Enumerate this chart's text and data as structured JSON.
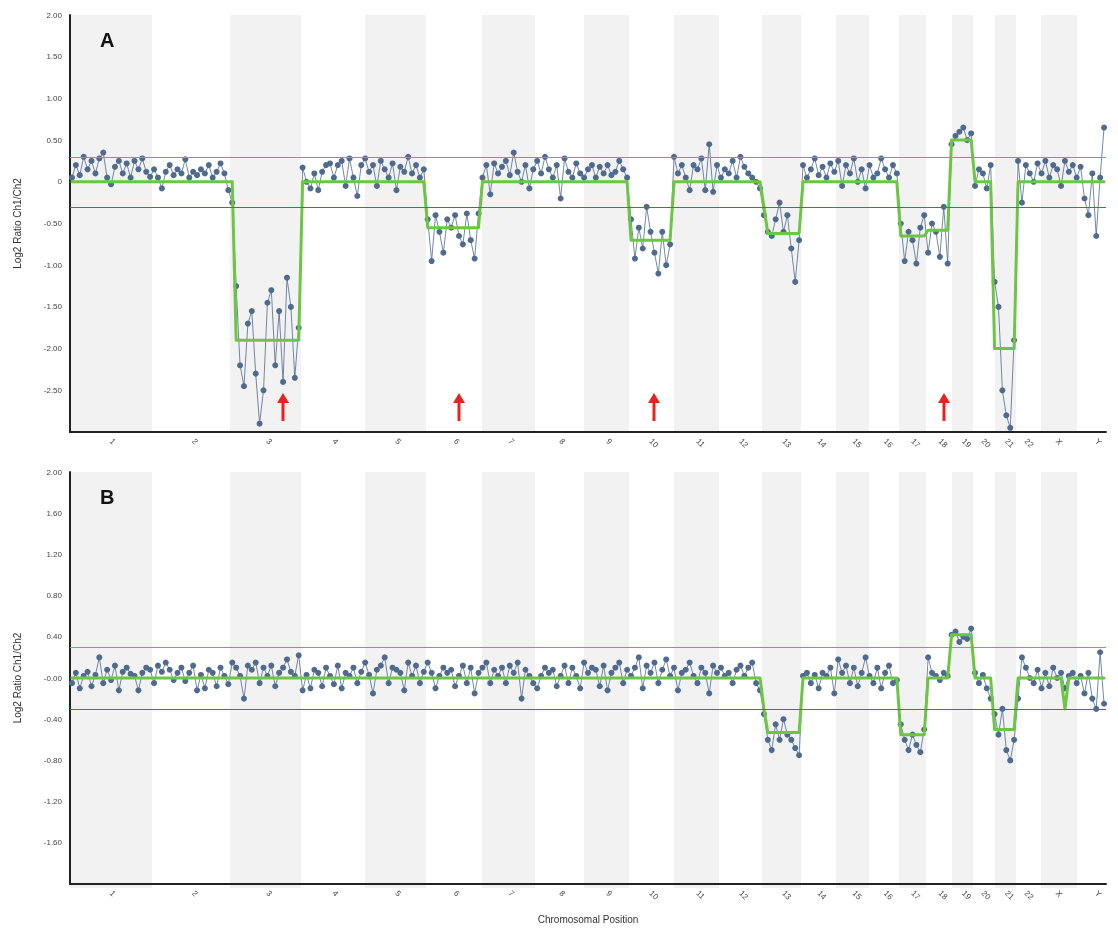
{
  "chart_data": [
    {
      "type": "line",
      "title": "A",
      "ylabel": "Log2 Ratio Ch1/Ch2",
      "ylim": [
        -3,
        2
      ],
      "categories": [
        null,
        null,
        null,
        null,
        null,
        null,
        null,
        null,
        null,
        null,
        "1",
        null,
        null,
        null,
        null,
        null,
        null,
        null,
        null,
        null,
        null,
        null,
        null,
        null,
        null,
        null,
        null,
        null,
        null,
        null,
        null,
        "2",
        null,
        null,
        null,
        null,
        null,
        null,
        null,
        null,
        null,
        null,
        null,
        null,
        null,
        null,
        null,
        null,
        null,
        null,
        "3",
        null,
        null,
        null,
        null,
        null,
        null,
        null,
        null,
        null,
        null,
        null,
        null,
        null,
        null,
        null,
        null,
        "4",
        null,
        null,
        null,
        null,
        null,
        null,
        null,
        null,
        null,
        null,
        null,
        null,
        null,
        null,
        null,
        "5",
        null,
        null,
        null,
        null,
        null,
        null,
        null,
        null,
        null,
        null,
        null,
        null,
        null,
        null,
        "6",
        null,
        null,
        null,
        null,
        null,
        null,
        null,
        null,
        null,
        null,
        null,
        null,
        null,
        "7",
        null,
        null,
        null,
        null,
        null,
        null,
        null,
        null,
        null,
        null,
        null,
        null,
        "8",
        null,
        null,
        null,
        null,
        null,
        null,
        null,
        null,
        null,
        null,
        null,
        "9",
        null,
        null,
        null,
        null,
        null,
        null,
        null,
        null,
        null,
        null,
        "10",
        null,
        null,
        null,
        null,
        null,
        null,
        null,
        null,
        null,
        null,
        null,
        "11",
        null,
        null,
        null,
        null,
        null,
        null,
        null,
        null,
        null,
        null,
        "12",
        null,
        null,
        null,
        null,
        null,
        null,
        null,
        null,
        null,
        null,
        "13",
        null,
        null,
        null,
        null,
        null,
        null,
        null,
        null,
        "14",
        null,
        null,
        null,
        null,
        null,
        null,
        null,
        null,
        "15",
        null,
        null,
        null,
        null,
        null,
        null,
        null,
        "16",
        null,
        null,
        null,
        null,
        null,
        null,
        "17",
        null,
        null,
        null,
        null,
        null,
        null,
        "18",
        null,
        null,
        null,
        null,
        null,
        "19",
        null,
        null,
        null,
        null,
        "20",
        null,
        null,
        null,
        null,
        null,
        "21",
        null,
        null,
        null,
        null,
        "22",
        null,
        null,
        null,
        null,
        null,
        null,
        null,
        "X",
        null,
        null,
        null,
        null,
        null,
        null,
        null,
        null,
        null,
        "Y",
        null,
        null
      ],
      "yticks": [
        {
          "value": 2,
          "label": "2.00"
        },
        {
          "value": 1.5,
          "label": "1.50"
        },
        {
          "value": 1,
          "label": "1.00"
        },
        {
          "value": 0.5,
          "label": "0.50"
        },
        0,
        {
          "value": -0.5,
          "label": "-0.50"
        },
        {
          "value": -1,
          "label": "-1.00"
        },
        {
          "value": -1.5,
          "label": "-1.50"
        },
        {
          "value": -2,
          "label": "-2.00"
        },
        {
          "value": -2.5,
          "label": "-2.50"
        }
      ],
      "ref_lines": [
        {
          "axis": "y",
          "value": 0.3,
          "color": "#66b84a"
        },
        {
          "axis": "y",
          "value": -0.3,
          "color": "#b04848"
        }
      ],
      "series": [
        {
          "marker": "circle",
          "color": "#4f6a8f",
          "values": [
            0.05,
            0.2,
            0.08,
            0.3,
            0.15,
            0.25,
            0.1,
            0.28,
            0.35,
            0.05,
            -0.03,
            0.18,
            0.25,
            0.1,
            0.22,
            0.05,
            0.25,
            0.15,
            0.28,
            0.12,
            0.06,
            0.15,
            0.05,
            -0.08,
            0.12,
            0.2,
            0.08,
            0.15,
            0.1,
            0.27,
            0.05,
            0.12,
            0.08,
            0.15,
            0.1,
            0.2,
            0.05,
            0.12,
            0.22,
            0.1,
            -0.1,
            -0.25,
            -1.25,
            -2.2,
            -2.45,
            -1.7,
            -1.55,
            -2.3,
            -2.9,
            -2.5,
            -1.45,
            -1.3,
            -2.2,
            -1.55,
            -2.4,
            -1.15,
            -1.5,
            -2.35,
            -1.75,
            0.17,
            0,
            -0.08,
            0.1,
            -0.1,
            0.12,
            0.2,
            0.22,
            0.05,
            0.2,
            0.25,
            -0.05,
            0.28,
            0.05,
            -0.17,
            0.2,
            0.28,
            0.12,
            0.2,
            -0.05,
            0.25,
            0.15,
            0.05,
            0.22,
            -0.1,
            0.18,
            0.12,
            0.3,
            0.1,
            0.2,
            0.05,
            0.15,
            -0.45,
            -0.95,
            -0.4,
            -0.6,
            -0.85,
            -0.45,
            -0.55,
            -0.4,
            -0.65,
            -0.75,
            -0.38,
            -0.7,
            -0.92,
            -0.38,
            0.05,
            0.2,
            -0.15,
            0.22,
            0.1,
            0.18,
            0.25,
            0.08,
            0.35,
            0.12,
            0,
            0.2,
            -0.08,
            0.15,
            0.25,
            0.1,
            0.3,
            0.15,
            0.05,
            0.2,
            -0.2,
            0.28,
            0.12,
            0.05,
            0.22,
            0.1,
            0.05,
            0.15,
            0.2,
            0.05,
            0.18,
            0.1,
            0.2,
            0.08,
            0.12,
            0.25,
            0.15,
            0.05,
            -0.45,
            -0.92,
            -0.55,
            -0.8,
            -0.3,
            -0.6,
            -0.85,
            -1.1,
            -0.6,
            -1,
            -0.75,
            0.3,
            0.1,
            0.2,
            0.05,
            -0.1,
            0.2,
            0.15,
            0.28,
            -0.1,
            0.45,
            -0.12,
            0.2,
            0.05,
            0.15,
            0.1,
            0.25,
            0.05,
            0.3,
            0.18,
            0.1,
            0.05,
            0,
            -0.08,
            -0.4,
            -0.6,
            -0.65,
            -0.45,
            -0.25,
            -0.6,
            -0.4,
            -0.8,
            -1.2,
            -0.7,
            0.2,
            0.05,
            0.15,
            0.28,
            0.08,
            0.18,
            0.05,
            0.22,
            0.12,
            0.25,
            -0.05,
            0.2,
            0.1,
            0.28,
            0,
            0.15,
            -0.08,
            0.2,
            0.05,
            0.1,
            0.28,
            0.15,
            0.05,
            0.2,
            0.1,
            -0.5,
            -0.95,
            -0.6,
            -0.7,
            -0.98,
            -0.55,
            -0.4,
            -0.85,
            -0.5,
            -0.6,
            -0.9,
            -0.3,
            -0.98,
            0.45,
            0.55,
            0.6,
            0.65,
            0.5,
            0.58,
            -0.05,
            0.15,
            0.1,
            -0.08,
            0.2,
            -1.2,
            -1.5,
            -2.5,
            -2.8,
            -2.95,
            -1.9,
            0.25,
            -0.25,
            0.2,
            0.1,
            0,
            0.22,
            0.1,
            0.25,
            0.05,
            0.2,
            0.15,
            -0.05,
            0.25,
            0.12,
            0.2,
            0.05,
            0.18,
            -0.2,
            -0.4,
            0.1,
            -0.65,
            0.05,
            0.65
          ]
        },
        {
          "marker": "none",
          "color": "#6cc644",
          "values": [
            0,
            0,
            0,
            0,
            0,
            0,
            0,
            0,
            0,
            0,
            0,
            0,
            0,
            0,
            0,
            0,
            0,
            0,
            0,
            0,
            0,
            0,
            0,
            0,
            0,
            0,
            0,
            0,
            0,
            0,
            0,
            0,
            0,
            0,
            0,
            0,
            0,
            0,
            0,
            0,
            0,
            0,
            -1.9,
            -1.9,
            -1.9,
            -1.9,
            -1.9,
            -1.9,
            -1.9,
            -1.9,
            -1.9,
            -1.9,
            -1.9,
            -1.9,
            -1.9,
            -1.9,
            -1.9,
            -1.9,
            -1.9,
            0,
            0,
            0,
            0,
            0,
            0,
            0,
            0,
            0,
            0,
            0,
            0,
            0,
            0,
            0,
            0,
            0,
            0,
            0,
            0,
            0,
            0,
            0,
            0,
            0,
            0,
            0,
            0,
            0,
            0,
            0,
            0,
            -0.55,
            -0.55,
            -0.55,
            -0.55,
            -0.55,
            -0.55,
            -0.55,
            -0.55,
            -0.55,
            -0.55,
            -0.55,
            -0.55,
            -0.55,
            -0.55,
            0,
            0,
            0,
            0,
            0,
            0,
            0,
            0,
            0,
            0,
            0,
            0,
            0,
            0,
            0,
            0,
            0,
            0,
            0,
            0,
            0,
            0,
            0,
            0,
            0,
            0,
            0,
            0,
            0,
            0,
            0,
            0,
            0,
            0,
            0,
            0,
            0,
            0,
            -0.7,
            -0.7,
            -0.7,
            -0.7,
            -0.7,
            -0.7,
            -0.7,
            -0.7,
            -0.7,
            -0.7,
            -0.7,
            0,
            0,
            0,
            0,
            0,
            0,
            0,
            0,
            0,
            0,
            0,
            0,
            0,
            0,
            0,
            0,
            0,
            0,
            0,
            0,
            0,
            0,
            0,
            -0.3,
            -0.62,
            -0.62,
            -0.62,
            -0.62,
            -0.62,
            -0.62,
            -0.62,
            -0.62,
            -0.62,
            0,
            0,
            0,
            0,
            0,
            0,
            0,
            0,
            0,
            0,
            0,
            0,
            0,
            0,
            0,
            0,
            0,
            0,
            0,
            0,
            0,
            0,
            0,
            0,
            0,
            -0.65,
            -0.65,
            -0.65,
            -0.65,
            -0.65,
            -0.65,
            -0.65,
            -0.58,
            -0.58,
            -0.58,
            -0.58,
            -0.58,
            -0.58,
            0.5,
            0.5,
            0.5,
            0.5,
            0.5,
            0.5,
            0,
            0,
            0,
            0,
            0,
            -2,
            -2,
            -2,
            -2,
            -2,
            -2,
            0,
            0,
            0,
            0,
            0,
            0,
            0,
            0,
            0,
            0,
            0,
            0,
            0,
            0,
            0,
            0,
            0,
            0,
            0,
            0,
            0,
            0,
            0
          ]
        }
      ]
    },
    {
      "type": "line",
      "title": "B",
      "xlabel": "Chromosomal Position",
      "ylabel": "Log2 Ratio Ch1/Ch2",
      "ylim": [
        -2,
        2
      ],
      "categories": [
        null,
        null,
        null,
        null,
        null,
        null,
        null,
        null,
        null,
        null,
        "1",
        null,
        null,
        null,
        null,
        null,
        null,
        null,
        null,
        null,
        null,
        null,
        null,
        null,
        null,
        null,
        null,
        null,
        null,
        null,
        null,
        "2",
        null,
        null,
        null,
        null,
        null,
        null,
        null,
        null,
        null,
        null,
        null,
        null,
        null,
        null,
        null,
        null,
        null,
        null,
        "3",
        null,
        null,
        null,
        null,
        null,
        null,
        null,
        null,
        null,
        null,
        null,
        null,
        null,
        null,
        null,
        null,
        "4",
        null,
        null,
        null,
        null,
        null,
        null,
        null,
        null,
        null,
        null,
        null,
        null,
        null,
        null,
        null,
        "5",
        null,
        null,
        null,
        null,
        null,
        null,
        null,
        null,
        null,
        null,
        null,
        null,
        null,
        null,
        "6",
        null,
        null,
        null,
        null,
        null,
        null,
        null,
        null,
        null,
        null,
        null,
        null,
        null,
        "7",
        null,
        null,
        null,
        null,
        null,
        null,
        null,
        null,
        null,
        null,
        null,
        null,
        "8",
        null,
        null,
        null,
        null,
        null,
        null,
        null,
        null,
        null,
        null,
        null,
        "9",
        null,
        null,
        null,
        null,
        null,
        null,
        null,
        null,
        null,
        null,
        "10",
        null,
        null,
        null,
        null,
        null,
        null,
        null,
        null,
        null,
        null,
        null,
        "11",
        null,
        null,
        null,
        null,
        null,
        null,
        null,
        null,
        null,
        null,
        "12",
        null,
        null,
        null,
        null,
        null,
        null,
        null,
        null,
        null,
        null,
        "13",
        null,
        null,
        null,
        null,
        null,
        null,
        null,
        null,
        "14",
        null,
        null,
        null,
        null,
        null,
        null,
        null,
        null,
        "15",
        null,
        null,
        null,
        null,
        null,
        null,
        null,
        "16",
        null,
        null,
        null,
        null,
        null,
        null,
        "17",
        null,
        null,
        null,
        null,
        null,
        null,
        "18",
        null,
        null,
        null,
        null,
        null,
        "19",
        null,
        null,
        null,
        null,
        "20",
        null,
        null,
        null,
        null,
        null,
        "21",
        null,
        null,
        null,
        null,
        "22",
        null,
        null,
        null,
        null,
        null,
        null,
        null,
        "X",
        null,
        null,
        null,
        null,
        null,
        null,
        null,
        null,
        null,
        "Y",
        null,
        null
      ],
      "yticks": [
        {
          "value": 2,
          "label": "2.00"
        },
        {
          "value": 1.6,
          "label": "1.60"
        },
        {
          "value": 1.2,
          "label": "1.20"
        },
        {
          "value": 0.8,
          "label": "0.80"
        },
        {
          "value": 0.4,
          "label": "0.40"
        },
        {
          "value": 0,
          "label": "-0.00"
        },
        {
          "value": -0.4,
          "label": "-0.40"
        },
        {
          "value": -0.8,
          "label": "-0.80"
        },
        {
          "value": -1.2,
          "label": "-1.20"
        },
        {
          "value": -1.6,
          "label": "-1.60"
        }
      ],
      "ref_lines": [
        {
          "axis": "y",
          "value": 0.3,
          "color": "#66b84a"
        },
        {
          "axis": "y",
          "value": -0.3,
          "color": "#b04848"
        }
      ],
      "series": [
        {
          "marker": "circle",
          "color": "#4f6a8f",
          "values": [
            -0.05,
            0.05,
            -0.1,
            0.02,
            0.06,
            -0.08,
            0.03,
            0.2,
            -0.05,
            0.08,
            -0.02,
            0.12,
            -0.12,
            0.06,
            0.1,
            0.04,
            0.02,
            -0.12,
            0.05,
            0.1,
            0.08,
            -0.05,
            0.12,
            0.06,
            0.15,
            0.08,
            -0.02,
            0.05,
            0.1,
            -0.03,
            0.05,
            0.12,
            -0.12,
            0.03,
            -0.1,
            0.08,
            0.05,
            -0.08,
            0.1,
            0.02,
            -0.06,
            0.15,
            0.1,
            0.02,
            -0.2,
            0.12,
            0.08,
            0.15,
            -0.05,
            0.1,
            0.02,
            0.12,
            -0.08,
            0.05,
            0.1,
            0.18,
            0.06,
            0.02,
            0.22,
            -0.12,
            0.03,
            -0.1,
            0.08,
            0.05,
            -0.08,
            0.1,
            0.02,
            -0.06,
            0.12,
            -0.1,
            0.05,
            0.02,
            0.1,
            -0.05,
            0.06,
            0.15,
            0.03,
            -0.15,
            0.08,
            0.12,
            0.2,
            -0.05,
            0.1,
            0.08,
            0.05,
            -0.12,
            0.15,
            0.02,
            0.12,
            -0.05,
            0.06,
            0.15,
            0.05,
            -0.1,
            0.02,
            0.1,
            0.05,
            0.08,
            -0.08,
            0.02,
            0.12,
            -0.05,
            0.1,
            -0.15,
            0.05,
            0.1,
            0.15,
            -0.05,
            0.08,
            0.02,
            0.1,
            -0.05,
            0.12,
            0.05,
            0.15,
            -0.2,
            0.08,
            0.02,
            -0.05,
            -0.1,
            0.02,
            0.1,
            0.05,
            0.08,
            -0.08,
            0.02,
            0.12,
            -0.05,
            0.1,
            0.02,
            -0.1,
            0.15,
            0.05,
            0.1,
            0.08,
            -0.08,
            0.12,
            -0.12,
            0.05,
            0.1,
            0.15,
            -0.05,
            0.08,
            0.02,
            0.1,
            0.2,
            -0.1,
            0.12,
            0.05,
            0.15,
            -0.05,
            0.08,
            0.18,
            0.02,
            0.1,
            -0.12,
            0.05,
            0.08,
            0.15,
            0.02,
            -0.05,
            0.1,
            0.05,
            -0.15,
            0.12,
            0.05,
            0.1,
            0.02,
            0.05,
            -0.05,
            0.08,
            0.12,
            0.02,
            0.1,
            0.15,
            -0.05,
            -0.12,
            -0.35,
            -0.6,
            -0.7,
            -0.45,
            -0.6,
            -0.4,
            -0.55,
            -0.6,
            -0.68,
            -0.75,
            0.02,
            0.05,
            -0.05,
            0.03,
            -0.1,
            0.05,
            0.02,
            0.1,
            -0.15,
            0.18,
            0.05,
            0.12,
            -0.05,
            0.1,
            -0.08,
            0.05,
            0.2,
            0.02,
            -0.05,
            0.1,
            -0.1,
            0.05,
            0.12,
            -0.05,
            -0.02,
            -0.45,
            -0.6,
            -0.7,
            -0.55,
            -0.65,
            -0.72,
            -0.5,
            0.2,
            0.05,
            0.02,
            -0.02,
            0.05,
            0.02,
            0.42,
            0.45,
            0.35,
            0.4,
            0.38,
            0.48,
            0.05,
            -0.05,
            0.03,
            -0.1,
            -0.2,
            -0.35,
            -0.55,
            -0.3,
            -0.7,
            -0.8,
            -0.6,
            -0.2,
            0.2,
            0.1,
            0,
            -0.05,
            0.08,
            -0.1,
            0.05,
            -0.08,
            0.1,
            0,
            0.05,
            -0.1,
            0.02,
            0.05,
            -0.05,
            0.02,
            -0.15,
            0.05,
            -0.2,
            -0.3,
            0.25,
            -0.25
          ]
        },
        {
          "marker": "none",
          "color": "#6cc644",
          "values": [
            0,
            0,
            0,
            0,
            0,
            0,
            0,
            0,
            0,
            0,
            0,
            0,
            0,
            0,
            0,
            0,
            0,
            0,
            0,
            0,
            0,
            0,
            0,
            0,
            0,
            0,
            0,
            0,
            0,
            0,
            0,
            0,
            0,
            0,
            0,
            0,
            0,
            0,
            0,
            0,
            0,
            0,
            0,
            0,
            0,
            0,
            0,
            0,
            0,
            0,
            0,
            0,
            0,
            0,
            0,
            0,
            0,
            0,
            0,
            0,
            0,
            0,
            0,
            0,
            0,
            0,
            0,
            0,
            0,
            0,
            0,
            0,
            0,
            0,
            0,
            0,
            0,
            0,
            0,
            0,
            0,
            0,
            0,
            0,
            0,
            0,
            0,
            0,
            0,
            0,
            0,
            0,
            0,
            0,
            0,
            0,
            0,
            0,
            0,
            0,
            0,
            0,
            0,
            0,
            0,
            0,
            0,
            0,
            0,
            0,
            0,
            0,
            0,
            0,
            0,
            0,
            0,
            0,
            0,
            0,
            0,
            0,
            0,
            0,
            0,
            0,
            0,
            0,
            0,
            0,
            0,
            0,
            0,
            0,
            0,
            0,
            0,
            0,
            0,
            0,
            0,
            0,
            0,
            0,
            0,
            0,
            0,
            0,
            0,
            0,
            0,
            0,
            0,
            0,
            0,
            0,
            0,
            0,
            0,
            0,
            0,
            0,
            0,
            0,
            0,
            0,
            0,
            0,
            0,
            0,
            0,
            0,
            0,
            0,
            0,
            0,
            0,
            -0.3,
            -0.53,
            -0.53,
            -0.53,
            -0.53,
            -0.53,
            -0.53,
            -0.53,
            -0.53,
            -0.53,
            0,
            0,
            0,
            0,
            0,
            0,
            0,
            0,
            0,
            0,
            0,
            0,
            0,
            0,
            0,
            0,
            0,
            0,
            0,
            0,
            0,
            0,
            0,
            0,
            0,
            -0.55,
            -0.55,
            -0.55,
            -0.55,
            -0.55,
            -0.55,
            -0.55,
            0,
            0,
            0,
            0,
            0,
            0,
            0.42,
            0.42,
            0.42,
            0.42,
            0.42,
            0.42,
            0,
            0,
            0,
            0,
            0,
            -0.5,
            -0.5,
            -0.5,
            -0.5,
            -0.5,
            -0.5,
            0,
            0,
            0,
            0,
            0,
            0,
            0,
            0,
            0,
            0,
            0,
            0,
            -0.3,
            0,
            0,
            0,
            0,
            0,
            0,
            0,
            0,
            0,
            0
          ]
        }
      ]
    }
  ]
}
